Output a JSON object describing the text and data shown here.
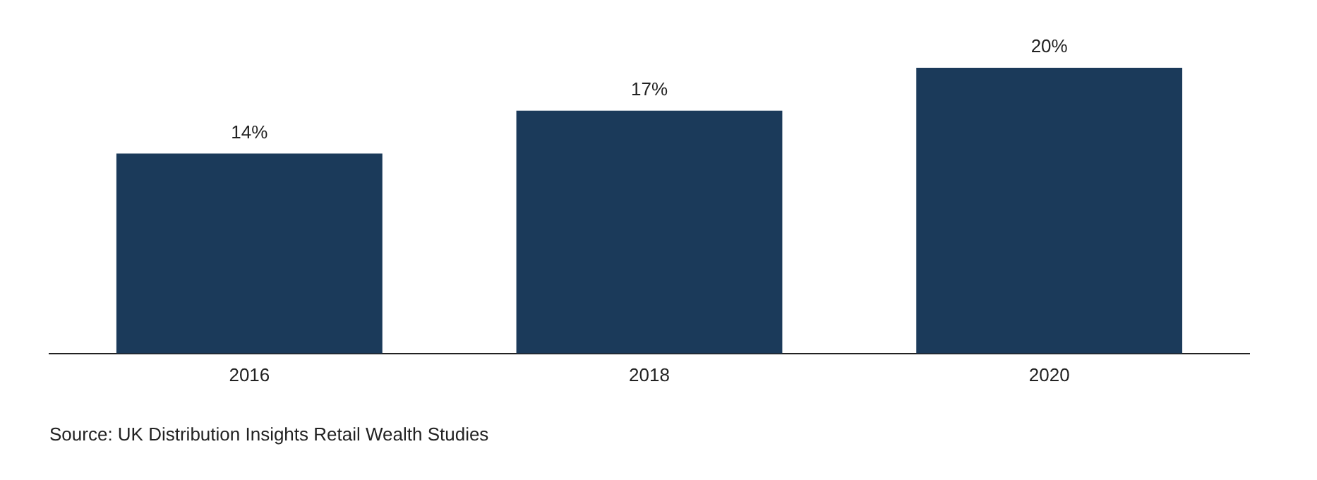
{
  "chart_data": {
    "type": "bar",
    "categories": [
      "2016",
      "2018",
      "2020"
    ],
    "values": [
      14,
      17,
      20
    ],
    "value_labels": [
      "14%",
      "17%",
      "20%"
    ],
    "color": "#1b3a5a",
    "grid": false,
    "legend": false,
    "annotations": [
      "Source: UK Distribution Insights Retail Wealth Studies"
    ]
  }
}
